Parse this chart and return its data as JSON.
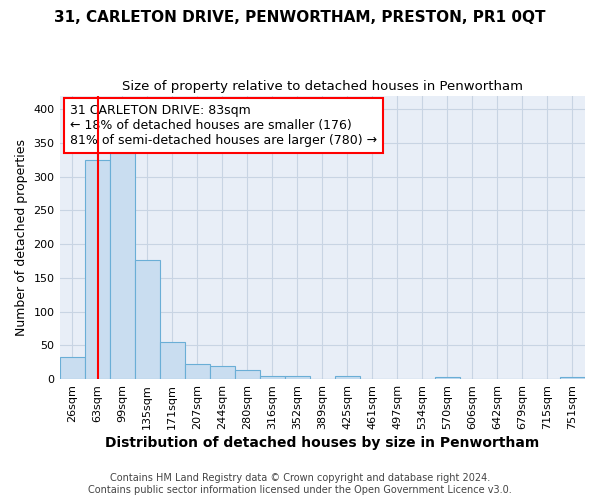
{
  "title": "31, CARLETON DRIVE, PENWORTHAM, PRESTON, PR1 0QT",
  "subtitle": "Size of property relative to detached houses in Penwortham",
  "xlabel": "Distribution of detached houses by size in Penwortham",
  "ylabel": "Number of detached properties",
  "footer_line1": "Contains HM Land Registry data © Crown copyright and database right 2024.",
  "footer_line2": "Contains public sector information licensed under the Open Government Licence v3.0.",
  "bin_labels": [
    "26sqm",
    "63sqm",
    "99sqm",
    "135sqm",
    "171sqm",
    "207sqm",
    "244sqm",
    "280sqm",
    "316sqm",
    "352sqm",
    "389sqm",
    "425sqm",
    "461sqm",
    "497sqm",
    "534sqm",
    "570sqm",
    "606sqm",
    "642sqm",
    "679sqm",
    "715sqm",
    "751sqm"
  ],
  "bar_heights": [
    32,
    324,
    335,
    176,
    55,
    22,
    20,
    13,
    5,
    5,
    0,
    5,
    0,
    0,
    0,
    3,
    0,
    0,
    0,
    0,
    3
  ],
  "bar_color": "#c9ddf0",
  "bar_edge_color": "#6aaed6",
  "annotation_text": "31 CARLETON DRIVE: 83sqm\n← 18% of detached houses are smaller (176)\n81% of semi-detached houses are larger (780) →",
  "annotation_box_color": "white",
  "annotation_box_edge_color": "red",
  "vline_color": "red",
  "ylim": [
    0,
    420
  ],
  "yticks": [
    0,
    50,
    100,
    150,
    200,
    250,
    300,
    350,
    400
  ],
  "grid_color": "#c8d4e3",
  "background_color": "#e8eef7",
  "title_fontsize": 11,
  "subtitle_fontsize": 9.5,
  "xlabel_fontsize": 10,
  "ylabel_fontsize": 9,
  "tick_fontsize": 8,
  "annotation_fontsize": 9,
  "footer_fontsize": 7
}
